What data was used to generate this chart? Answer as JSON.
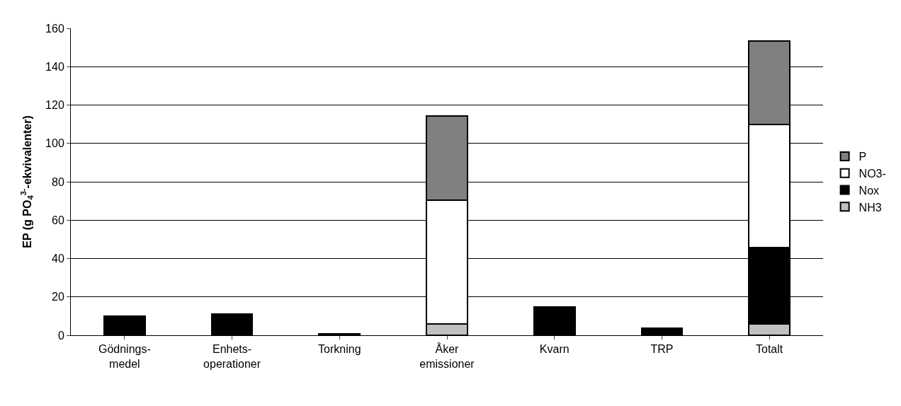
{
  "chart_data": {
    "type": "bar",
    "stacked": true,
    "ylabel": "EP (g PO$_{4}$$^{3-}$-ekvivalenter)",
    "categories": [
      "Gödnings-\nmedel",
      "Enhets-\noperationer",
      "Torkning",
      "Åker\nemissioner",
      "Kvarn",
      "TRP",
      "Totalt"
    ],
    "series": [
      {
        "name": "NH3",
        "color": "#c0c0c0",
        "values": [
          null,
          null,
          null,
          5.8,
          null,
          null,
          5.8
        ]
      },
      {
        "name": "Nox",
        "color": "#000000",
        "values": [
          10,
          10.9,
          0.7,
          null,
          14.6,
          3.6,
          39.8
        ]
      },
      {
        "name": "NO3-",
        "color": "#ffffff",
        "values": [
          null,
          null,
          null,
          64.7,
          null,
          null,
          64.2
        ]
      },
      {
        "name": "P",
        "color": "#808080",
        "values": [
          null,
          null,
          null,
          43.7,
          null,
          null,
          43.6
        ]
      }
    ],
    "ylim": [
      0,
      160
    ],
    "yticks": [
      0,
      20,
      40,
      60,
      80,
      100,
      120,
      140,
      160
    ],
    "grid": "y",
    "legend": "right"
  }
}
